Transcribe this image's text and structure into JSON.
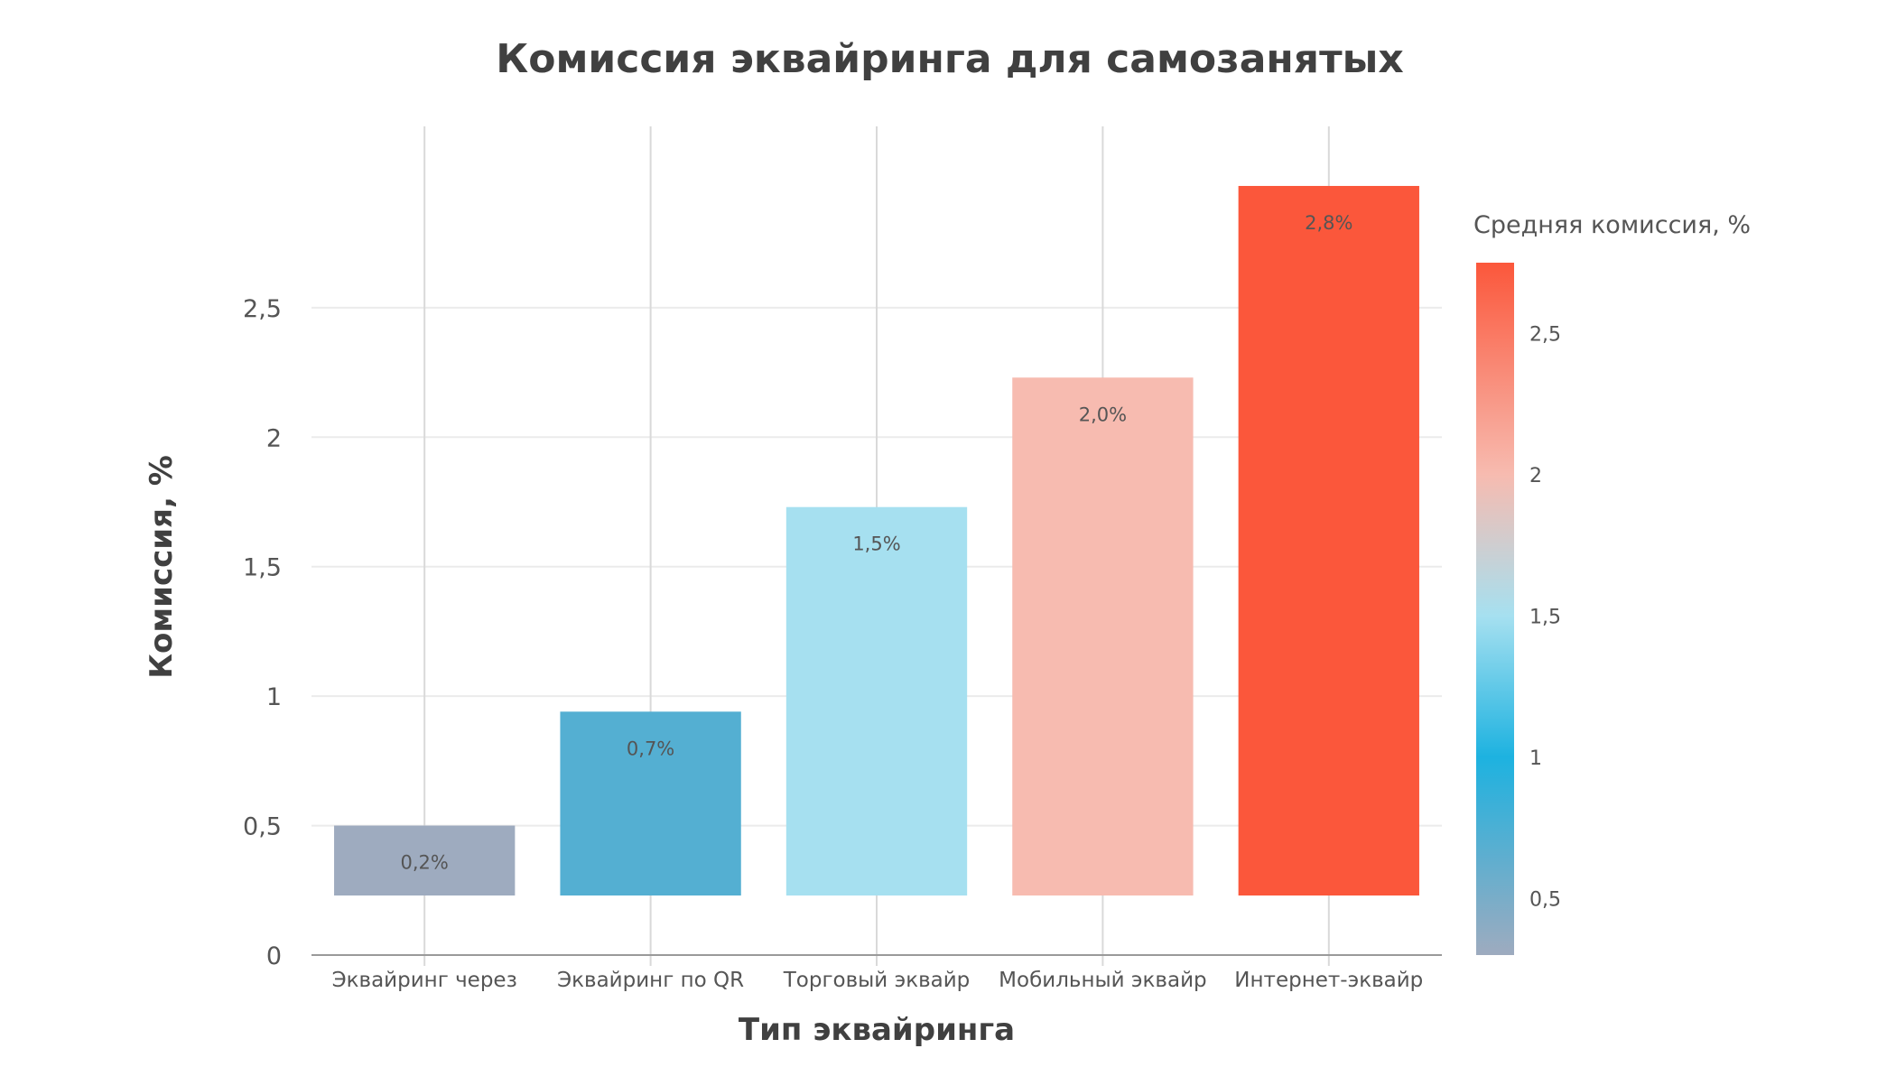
{
  "chart_data": {
    "type": "bar",
    "title": "Комиссия эквайринга для самозанятых",
    "xlabel": "Тип эквайринга",
    "ylabel": "Комиссия, %",
    "categories": [
      "Эквайринг через",
      "Эквайринг по QR",
      "Торговый эквайр",
      "Мобильный эквайр",
      "Интернет-эквайр"
    ],
    "bar_bottom": 0.23,
    "values": [
      0.5,
      0.94,
      1.73,
      2.23,
      2.97
    ],
    "data_labels": [
      "0,2%",
      "0,7%",
      "1,5%",
      "2,0%",
      "2,8%"
    ],
    "color_values": [
      0.2,
      0.7,
      1.5,
      2.0,
      2.8
    ],
    "ylim": [
      0,
      3.2
    ],
    "yticks": [
      0,
      0.5,
      1,
      1.5,
      2,
      2.5
    ],
    "ytick_labels": [
      "0",
      "0,5",
      "1",
      "1,5",
      "2",
      "2,5"
    ],
    "grid": true,
    "legend": {
      "title": "Средняя комиссия, %",
      "placement": "right",
      "range": [
        0.3,
        2.75
      ],
      "ticks": [
        0.5,
        1,
        1.5,
        2,
        2.5
      ],
      "tick_labels": [
        "0,5",
        "1",
        "1,5",
        "2",
        "2,5"
      ],
      "colors": [
        {
          "value": 0.3,
          "color": "#9eabbf"
        },
        {
          "value": 1.0,
          "color": "#1db2e0"
        },
        {
          "value": 1.5,
          "color": "#a6e0f0"
        },
        {
          "value": 2.0,
          "color": "#f7bbb0"
        },
        {
          "value": 2.75,
          "color": "#fb573b"
        }
      ]
    }
  }
}
